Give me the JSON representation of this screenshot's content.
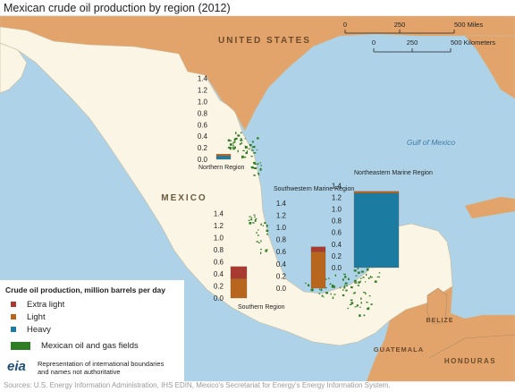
{
  "title": "Mexican crude oil production by region (2012)",
  "footer": "Sources: U.S. Energy Information Administration, IHS EDIN, Mexico's Secretariat for Energy's Energy Information System.",
  "map_labels": {
    "us": "UNITED STATES",
    "mexico": "MEXICO",
    "gulf": "Gulf of Mexico",
    "belize": "BELIZE",
    "guatemala": "GUATEMALA",
    "honduras": "HONDURAS"
  },
  "scale_bar": {
    "miles_ticks": [
      "0",
      "250",
      "500 Miles"
    ],
    "km_ticks": [
      "0",
      "250",
      "500 Kilometers"
    ]
  },
  "colors": {
    "extra_light": "#a83a32",
    "light": "#b8651e",
    "heavy": "#1c7ba1",
    "fields": "#2f7d25",
    "land_mexico": "#fbf5e6",
    "land_other": "#e3a46b",
    "water": "#aed3e8"
  },
  "legend": {
    "title": "Crude oil production, million barrels per day",
    "items": [
      {
        "label": "Extra light",
        "color": "#a83a32"
      },
      {
        "label": "Light",
        "color": "#b8651e"
      },
      {
        "label": "Heavy",
        "color": "#1c7ba1"
      }
    ],
    "fields_label": "Mexican oil and gas fields",
    "logo": "eia",
    "disclaimer_1": "Representation of international boundaries",
    "disclaimer_2": "and names not authoritative"
  },
  "chart_data": {
    "type": "bar",
    "stacked": true,
    "ylim": [
      0,
      1.4
    ],
    "ticks": [
      "0.0",
      "0.2",
      "0.4",
      "0.6",
      "0.8",
      "1.0",
      "1.2",
      "1.4"
    ],
    "series_names": [
      "Heavy",
      "Light",
      "Extra light"
    ],
    "regions": [
      {
        "name": "Northern Region",
        "heavy": 0.06,
        "light": 0.03,
        "extra_light": 0.0
      },
      {
        "name": "Southern Region",
        "heavy": 0.0,
        "light": 0.32,
        "extra_light": 0.2
      },
      {
        "name": "Southwestern Marine Region",
        "heavy": 0.0,
        "light": 0.6,
        "extra_light": 0.08
      },
      {
        "name": "Northeastern Marine Region",
        "heavy": 1.27,
        "light": 0.03,
        "extra_light": 0.0
      }
    ]
  }
}
